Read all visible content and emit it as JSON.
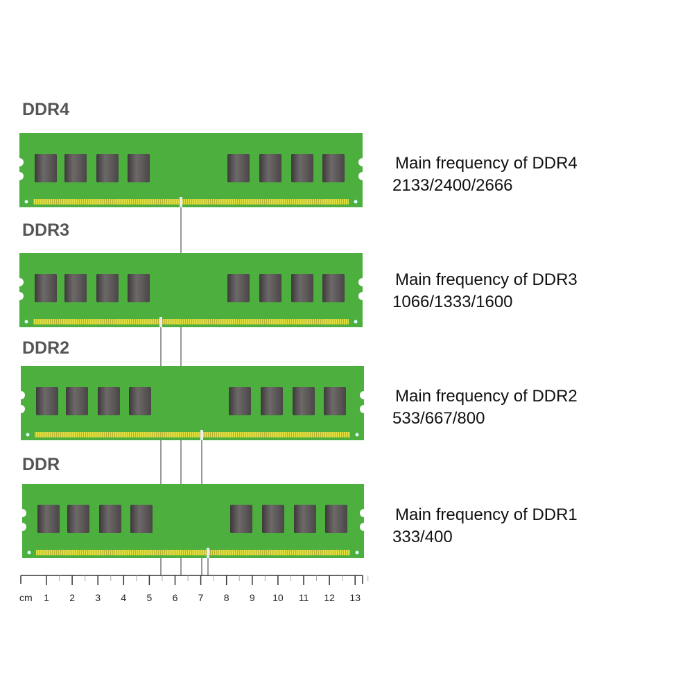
{
  "modules": [
    {
      "name": "DDR4",
      "title": "Main frequency of DDR4",
      "frequencies": "2133/2400/2666"
    },
    {
      "name": "DDR3",
      "title": "Main frequency of DDR3",
      "frequencies": "1066/1333/1600"
    },
    {
      "name": "DDR2",
      "title": "Main frequency of DDR2",
      "frequencies": "533/667/800"
    },
    {
      "name": "DDR",
      "title": "Main frequency of DDR1",
      "frequencies": "333/400"
    }
  ],
  "ruler": {
    "unit": "cm",
    "ticks": [
      "1",
      "2",
      "3",
      "4",
      "5",
      "6",
      "7",
      "8",
      "9",
      "10",
      "11",
      "12",
      "13"
    ]
  },
  "colors": {
    "pcb": "#4caf3e",
    "chip": "#5a5556",
    "contacts": "#d9d93a",
    "label": "#555555"
  }
}
